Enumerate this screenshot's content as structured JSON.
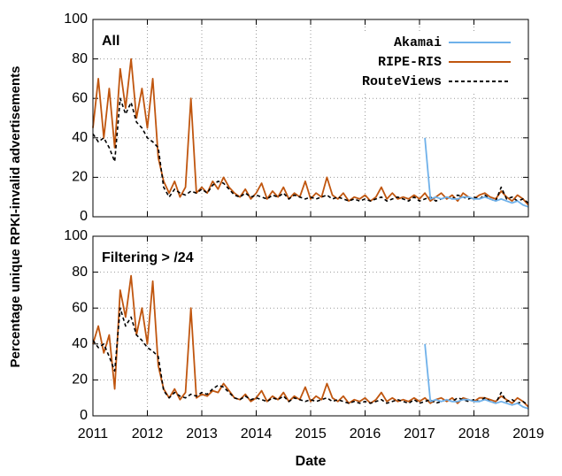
{
  "chart_data": [
    {
      "type": "line",
      "title": "All",
      "ylabel": "Percentage unique RPKI-invalid advertisements",
      "xlim": [
        2011,
        2019
      ],
      "xticks": [
        2011,
        2012,
        2013,
        2014,
        2015,
        2016,
        2017,
        2018,
        2019
      ],
      "ylim": [
        0,
        100
      ],
      "yticks": [
        0,
        20,
        40,
        60,
        80,
        100
      ],
      "grid": true,
      "legend": "upper right",
      "x": [
        2011,
        2011.1,
        2011.2,
        2011.3,
        2011.4,
        2011.5,
        2011.6,
        2011.7,
        2011.8,
        2011.9,
        2012,
        2012.1,
        2012.2,
        2012.3,
        2012.4,
        2012.5,
        2012.6,
        2012.7,
        2012.8,
        2012.9,
        2013,
        2013.1,
        2013.2,
        2013.3,
        2013.4,
        2013.5,
        2013.6,
        2013.7,
        2013.8,
        2013.9,
        2014,
        2014.1,
        2014.2,
        2014.3,
        2014.4,
        2014.5,
        2014.6,
        2014.7,
        2014.8,
        2014.9,
        2015,
        2015.1,
        2015.2,
        2015.3,
        2015.4,
        2015.5,
        2015.6,
        2015.7,
        2015.8,
        2015.9,
        2016,
        2016.1,
        2016.2,
        2016.3,
        2016.4,
        2016.5,
        2016.6,
        2016.7,
        2016.8,
        2016.9,
        2017,
        2017.1,
        2017.2,
        2017.3,
        2017.4,
        2017.5,
        2017.6,
        2017.7,
        2017.8,
        2017.9,
        2018,
        2018.1,
        2018.2,
        2018.3,
        2018.4,
        2018.5,
        2018.6,
        2018.7,
        2018.8,
        2018.9,
        2019
      ],
      "series": [
        {
          "name": "Akamai",
          "color": "#6fb1ea",
          "style": "solid",
          "values": [
            null,
            null,
            null,
            null,
            null,
            null,
            null,
            null,
            null,
            null,
            null,
            null,
            null,
            null,
            null,
            null,
            null,
            null,
            null,
            null,
            null,
            null,
            null,
            null,
            null,
            null,
            null,
            null,
            null,
            null,
            null,
            null,
            null,
            null,
            null,
            null,
            null,
            null,
            null,
            null,
            null,
            null,
            null,
            null,
            null,
            null,
            null,
            null,
            null,
            null,
            null,
            null,
            null,
            null,
            null,
            null,
            null,
            null,
            null,
            null,
            null,
            40,
            9,
            10,
            9,
            10,
            9,
            9,
            10,
            10,
            9,
            9,
            10,
            9,
            8,
            9,
            8,
            7,
            8,
            6,
            5
          ]
        },
        {
          "name": "RIPE-RIS",
          "color": "#c0560f",
          "style": "solid",
          "values": [
            45,
            70,
            40,
            65,
            35,
            75,
            55,
            80,
            50,
            65,
            45,
            70,
            30,
            18,
            12,
            18,
            10,
            15,
            60,
            12,
            15,
            12,
            18,
            14,
            20,
            15,
            12,
            10,
            14,
            9,
            12,
            17,
            9,
            13,
            10,
            15,
            9,
            12,
            10,
            18,
            9,
            12,
            10,
            20,
            11,
            9,
            12,
            8,
            10,
            9,
            11,
            8,
            10,
            15,
            9,
            12,
            9,
            10,
            9,
            11,
            9,
            12,
            8,
            10,
            12,
            9,
            11,
            8,
            12,
            10,
            9,
            11,
            12,
            10,
            9,
            13,
            10,
            8,
            11,
            9,
            6
          ]
        },
        {
          "name": "RouteViews",
          "color": "#000000",
          "style": "dashed",
          "values": [
            42,
            38,
            40,
            35,
            28,
            60,
            52,
            58,
            48,
            45,
            40,
            38,
            35,
            15,
            10,
            14,
            12,
            11,
            13,
            12,
            14,
            12,
            16,
            18,
            17,
            14,
            11,
            10,
            12,
            10,
            11,
            10,
            9,
            11,
            10,
            12,
            9,
            11,
            10,
            9,
            10,
            9,
            10,
            11,
            9,
            10,
            9,
            8,
            9,
            8,
            9,
            8,
            9,
            10,
            8,
            9,
            10,
            9,
            8,
            10,
            8,
            9,
            10,
            8,
            9,
            10,
            9,
            11,
            10,
            9,
            10,
            9,
            11,
            9,
            8,
            15,
            9,
            10,
            8,
            9,
            7
          ]
        }
      ]
    },
    {
      "type": "line",
      "title": "Filtering > /24",
      "xlabel": "Date",
      "xlim": [
        2011,
        2019
      ],
      "xticks": [
        2011,
        2012,
        2013,
        2014,
        2015,
        2016,
        2017,
        2018,
        2019
      ],
      "ylim": [
        0,
        100
      ],
      "yticks": [
        0,
        20,
        40,
        60,
        80,
        100
      ],
      "grid": true,
      "x": [
        2011,
        2011.1,
        2011.2,
        2011.3,
        2011.4,
        2011.5,
        2011.6,
        2011.7,
        2011.8,
        2011.9,
        2012,
        2012.1,
        2012.2,
        2012.3,
        2012.4,
        2012.5,
        2012.6,
        2012.7,
        2012.8,
        2012.9,
        2013,
        2013.1,
        2013.2,
        2013.3,
        2013.4,
        2013.5,
        2013.6,
        2013.7,
        2013.8,
        2013.9,
        2014,
        2014.1,
        2014.2,
        2014.3,
        2014.4,
        2014.5,
        2014.6,
        2014.7,
        2014.8,
        2014.9,
        2015,
        2015.1,
        2015.2,
        2015.3,
        2015.4,
        2015.5,
        2015.6,
        2015.7,
        2015.8,
        2015.9,
        2016,
        2016.1,
        2016.2,
        2016.3,
        2016.4,
        2016.5,
        2016.6,
        2016.7,
        2016.8,
        2016.9,
        2017,
        2017.1,
        2017.2,
        2017.3,
        2017.4,
        2017.5,
        2017.6,
        2017.7,
        2017.8,
        2017.9,
        2018,
        2018.1,
        2018.2,
        2018.3,
        2018.4,
        2018.5,
        2018.6,
        2018.7,
        2018.8,
        2018.9,
        2019
      ],
      "series": [
        {
          "name": "Akamai",
          "color": "#6fb1ea",
          "style": "solid",
          "values": [
            null,
            null,
            null,
            null,
            null,
            null,
            null,
            null,
            null,
            null,
            null,
            null,
            null,
            null,
            null,
            null,
            null,
            null,
            null,
            null,
            null,
            null,
            null,
            null,
            null,
            null,
            null,
            null,
            null,
            null,
            null,
            null,
            null,
            null,
            null,
            null,
            null,
            null,
            null,
            null,
            null,
            null,
            null,
            null,
            null,
            null,
            null,
            null,
            null,
            null,
            null,
            null,
            null,
            null,
            null,
            null,
            null,
            null,
            null,
            null,
            null,
            40,
            8,
            9,
            8,
            9,
            8,
            8,
            9,
            9,
            8,
            8,
            9,
            8,
            7,
            8,
            7,
            6,
            7,
            5,
            4
          ]
        },
        {
          "name": "RIPE-RIS",
          "color": "#c0560f",
          "style": "solid",
          "values": [
            40,
            50,
            35,
            45,
            15,
            70,
            55,
            78,
            45,
            60,
            40,
            75,
            28,
            15,
            10,
            15,
            9,
            13,
            60,
            10,
            12,
            11,
            14,
            13,
            18,
            14,
            10,
            9,
            12,
            8,
            10,
            14,
            8,
            11,
            9,
            13,
            8,
            11,
            9,
            16,
            8,
            11,
            9,
            18,
            10,
            8,
            11,
            7,
            9,
            8,
            10,
            7,
            9,
            13,
            8,
            10,
            8,
            9,
            8,
            10,
            8,
            10,
            7,
            9,
            10,
            8,
            10,
            7,
            10,
            9,
            8,
            10,
            10,
            9,
            8,
            11,
            9,
            7,
            10,
            8,
            5
          ]
        },
        {
          "name": "RouteViews",
          "color": "#000000",
          "style": "dashed",
          "values": [
            42,
            38,
            40,
            33,
            25,
            60,
            50,
            55,
            45,
            42,
            38,
            36,
            33,
            14,
            10,
            13,
            11,
            10,
            12,
            11,
            13,
            12,
            15,
            17,
            16,
            13,
            10,
            9,
            11,
            9,
            10,
            9,
            8,
            10,
            9,
            11,
            8,
            10,
            9,
            8,
            9,
            8,
            9,
            10,
            8,
            9,
            8,
            7,
            8,
            7,
            8,
            7,
            8,
            9,
            7,
            8,
            9,
            8,
            7,
            9,
            7,
            8,
            9,
            7,
            8,
            9,
            8,
            10,
            9,
            8,
            9,
            8,
            10,
            8,
            7,
            13,
            8,
            9,
            7,
            8,
            6
          ]
        }
      ]
    }
  ]
}
